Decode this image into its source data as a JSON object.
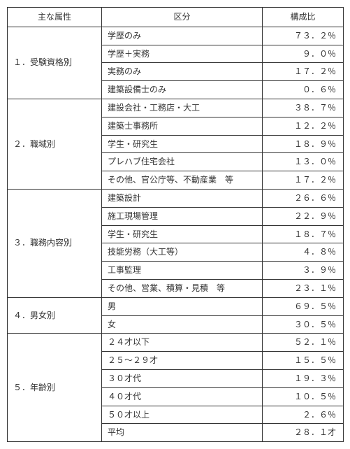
{
  "headers": {
    "attr": "主な属性",
    "cat": "区分",
    "pct": "構成比"
  },
  "groups": [
    {
      "label": "１．受験資格別",
      "rows": [
        {
          "cat": "学歴のみ",
          "pct": "７３．２％"
        },
        {
          "cat": "学歴＋実務",
          "pct": "９．０％"
        },
        {
          "cat": "実務のみ",
          "pct": "１７．２％"
        },
        {
          "cat": "建築設備士のみ",
          "pct": "０．６％"
        }
      ]
    },
    {
      "label": "２．職域別",
      "rows": [
        {
          "cat": "建設会社・工務店・大工",
          "pct": "３８．７％"
        },
        {
          "cat": "建築士事務所",
          "pct": "１２．２％"
        },
        {
          "cat": "学生・研究生",
          "pct": "１８．９％"
        },
        {
          "cat": "プレハブ住宅会社",
          "pct": "１３．０％"
        },
        {
          "cat": "その他、官公庁等、不動産業　等",
          "pct": "１７．２％"
        }
      ]
    },
    {
      "label": "３．職務内容別",
      "rows": [
        {
          "cat": "建築設計",
          "pct": "２６．６％"
        },
        {
          "cat": "施工現場管理",
          "pct": "２２．９％"
        },
        {
          "cat": "学生・研究生",
          "pct": "１８．７％"
        },
        {
          "cat": "技能労務（大工等）",
          "pct": "４．８％"
        },
        {
          "cat": "工事監理",
          "pct": "３．９％"
        },
        {
          "cat": "その他、営業、積算・見積　等",
          "pct": "２３．１％"
        }
      ]
    },
    {
      "label": "４．男女別",
      "rows": [
        {
          "cat": "男",
          "pct": "６９．５％"
        },
        {
          "cat": "女",
          "pct": "３０．５％"
        }
      ]
    },
    {
      "label": "５．年齢別",
      "rows": [
        {
          "cat": "２４才以下",
          "pct": "５２．１％"
        },
        {
          "cat": "２５～２９才",
          "pct": "１５．５％"
        },
        {
          "cat": "３０才代",
          "pct": "１９．３％"
        },
        {
          "cat": "４０才代",
          "pct": "１０．５％"
        },
        {
          "cat": "５０才以上",
          "pct": "２．６％"
        },
        {
          "cat": "平均",
          "pct": "２８．１才"
        }
      ]
    }
  ]
}
